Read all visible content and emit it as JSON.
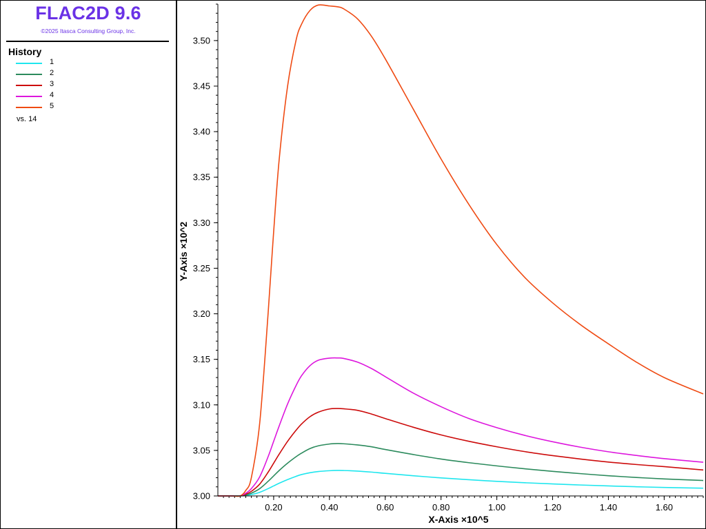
{
  "app": {
    "title": "FLAC2D 9.6",
    "copyright": "©2025 Itasca Consulting Group, Inc."
  },
  "legend": {
    "heading": "History",
    "items": [
      {
        "label": "1",
        "color": "#1ee6ee"
      },
      {
        "label": "2",
        "color": "#2b8a5c"
      },
      {
        "label": "3",
        "color": "#cc0a0a"
      },
      {
        "label": "4",
        "color": "#dd16dd"
      },
      {
        "label": "5",
        "color": "#ef4a12"
      }
    ],
    "vs_label": "vs. 14"
  },
  "chart_data": {
    "type": "line",
    "xlabel": "X-Axis ×10^5",
    "ylabel": "Y-Axis ×10^2",
    "xlim": [
      0,
      1.74
    ],
    "ylim": [
      3.0,
      3.54
    ],
    "x_ticks": [
      0.2,
      0.4,
      0.6,
      0.8,
      1.0,
      1.2,
      1.4,
      1.6
    ],
    "x_tick_labels": [
      "0.20",
      "0.40",
      "0.60",
      "0.80",
      "1.00",
      "1.20",
      "1.40",
      "1.60"
    ],
    "y_ticks": [
      3.0,
      3.05,
      3.1,
      3.15,
      3.2,
      3.25,
      3.3,
      3.35,
      3.4,
      3.45,
      3.5
    ],
    "y_tick_labels": [
      "3.00",
      "3.05",
      "3.10",
      "3.15",
      "3.20",
      "3.25",
      "3.30",
      "3.35",
      "3.40",
      "3.45",
      "3.50"
    ],
    "grid": false,
    "legend_position": "left-panel",
    "x": [
      0.0,
      0.05,
      0.08,
      0.1,
      0.12,
      0.15,
      0.18,
      0.2,
      0.22,
      0.25,
      0.28,
      0.3,
      0.33,
      0.36,
      0.4,
      0.43,
      0.45,
      0.5,
      0.55,
      0.6,
      0.7,
      0.8,
      0.9,
      1.0,
      1.1,
      1.2,
      1.3,
      1.4,
      1.5,
      1.6,
      1.74
    ],
    "series": [
      {
        "name": "1",
        "color": "#1ee6ee",
        "values": [
          3.0,
          3.0,
          3.0,
          3.0005,
          3.0015,
          3.004,
          3.008,
          3.011,
          3.014,
          3.018,
          3.0215,
          3.0235,
          3.0255,
          3.0268,
          3.0277,
          3.028,
          3.0279,
          3.0273,
          3.0262,
          3.0248,
          3.0222,
          3.0198,
          3.0178,
          3.016,
          3.0145,
          3.0132,
          3.012,
          3.011,
          3.0101,
          3.0093,
          3.0085
        ]
      },
      {
        "name": "2",
        "color": "#2b8a5c",
        "values": [
          3.0,
          3.0,
          3.0,
          3.001,
          3.003,
          3.008,
          3.016,
          3.022,
          3.028,
          3.036,
          3.043,
          3.047,
          3.052,
          3.055,
          3.057,
          3.0575,
          3.0573,
          3.056,
          3.054,
          3.051,
          3.0455,
          3.0405,
          3.0365,
          3.033,
          3.0298,
          3.027,
          3.0245,
          3.0222,
          3.0203,
          3.0187,
          3.017
        ]
      },
      {
        "name": "3",
        "color": "#cc0a0a",
        "values": [
          3.0,
          3.0,
          3.0,
          3.002,
          3.005,
          3.013,
          3.026,
          3.036,
          3.046,
          3.06,
          3.072,
          3.079,
          3.087,
          3.092,
          3.0955,
          3.096,
          3.0957,
          3.094,
          3.09,
          3.085,
          3.0755,
          3.067,
          3.06,
          3.054,
          3.0487,
          3.0443,
          3.0405,
          3.0372,
          3.0345,
          3.0322,
          3.0285
        ]
      },
      {
        "name": "4",
        "color": "#dd16dd",
        "values": [
          3.0,
          3.0,
          3.0,
          3.003,
          3.008,
          3.021,
          3.043,
          3.06,
          3.077,
          3.101,
          3.121,
          3.132,
          3.143,
          3.149,
          3.1513,
          3.1515,
          3.151,
          3.147,
          3.14,
          3.131,
          3.113,
          3.098,
          3.085,
          3.075,
          3.0665,
          3.0595,
          3.0535,
          3.0485,
          3.0445,
          3.041,
          3.037
        ]
      },
      {
        "name": "5",
        "color": "#ef4a12",
        "values": [
          3.0,
          3.0,
          3.0,
          3.006,
          3.02,
          3.08,
          3.2,
          3.29,
          3.37,
          3.45,
          3.5,
          3.518,
          3.533,
          3.539,
          3.538,
          3.537,
          3.535,
          3.524,
          3.505,
          3.48,
          3.425,
          3.37,
          3.32,
          3.276,
          3.24,
          3.212,
          3.188,
          3.167,
          3.147,
          3.13,
          3.112
        ]
      }
    ]
  }
}
